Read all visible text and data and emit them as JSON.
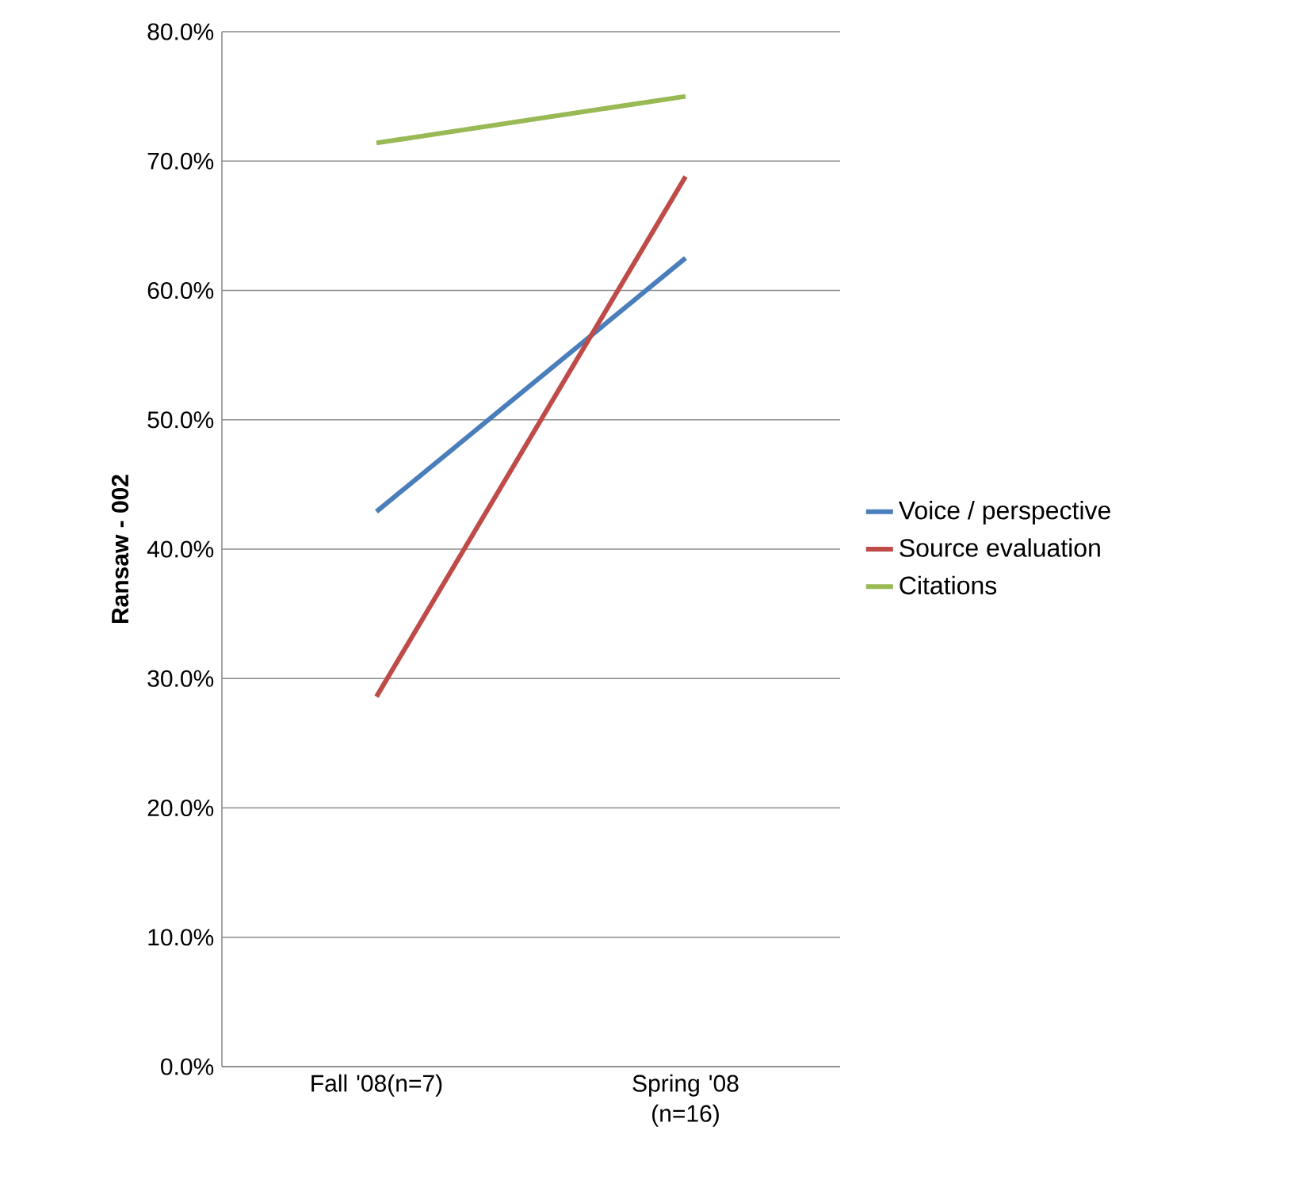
{
  "chart_data": {
    "type": "line",
    "ylabel": "**Ransaw - 002**",
    "categories": [
      "Fall '08(n=7)",
      "Spring '08 (n=16)"
    ],
    "series": [
      {
        "name": "Voice / perspective",
        "color": "#4a7ebb",
        "values": [
          42.9,
          62.5
        ]
      },
      {
        "name": "Source evaluation",
        "color": "#be4b48",
        "values": [
          28.6,
          68.8
        ]
      },
      {
        "name": "Citations",
        "color": "#98b954",
        "values": [
          71.4,
          75.0
        ]
      }
    ],
    "ylim": [
      0,
      80
    ],
    "yticks": [
      {
        "value": 0,
        "label": "0.0%"
      },
      {
        "value": 10,
        "label": "10.0%"
      },
      {
        "value": 20,
        "label": "20.0%"
      },
      {
        "value": 30,
        "label": "30.0%"
      },
      {
        "value": 40,
        "label": "40.0%"
      },
      {
        "value": 50,
        "label": "50.0%"
      },
      {
        "value": 60,
        "label": "60.0%"
      },
      {
        "value": 70,
        "label": "70.0%"
      },
      {
        "value": 80,
        "label": "80.0%"
      }
    ],
    "grid": "y",
    "legend": "right",
    "marker": "none",
    "line_style": "solid"
  }
}
